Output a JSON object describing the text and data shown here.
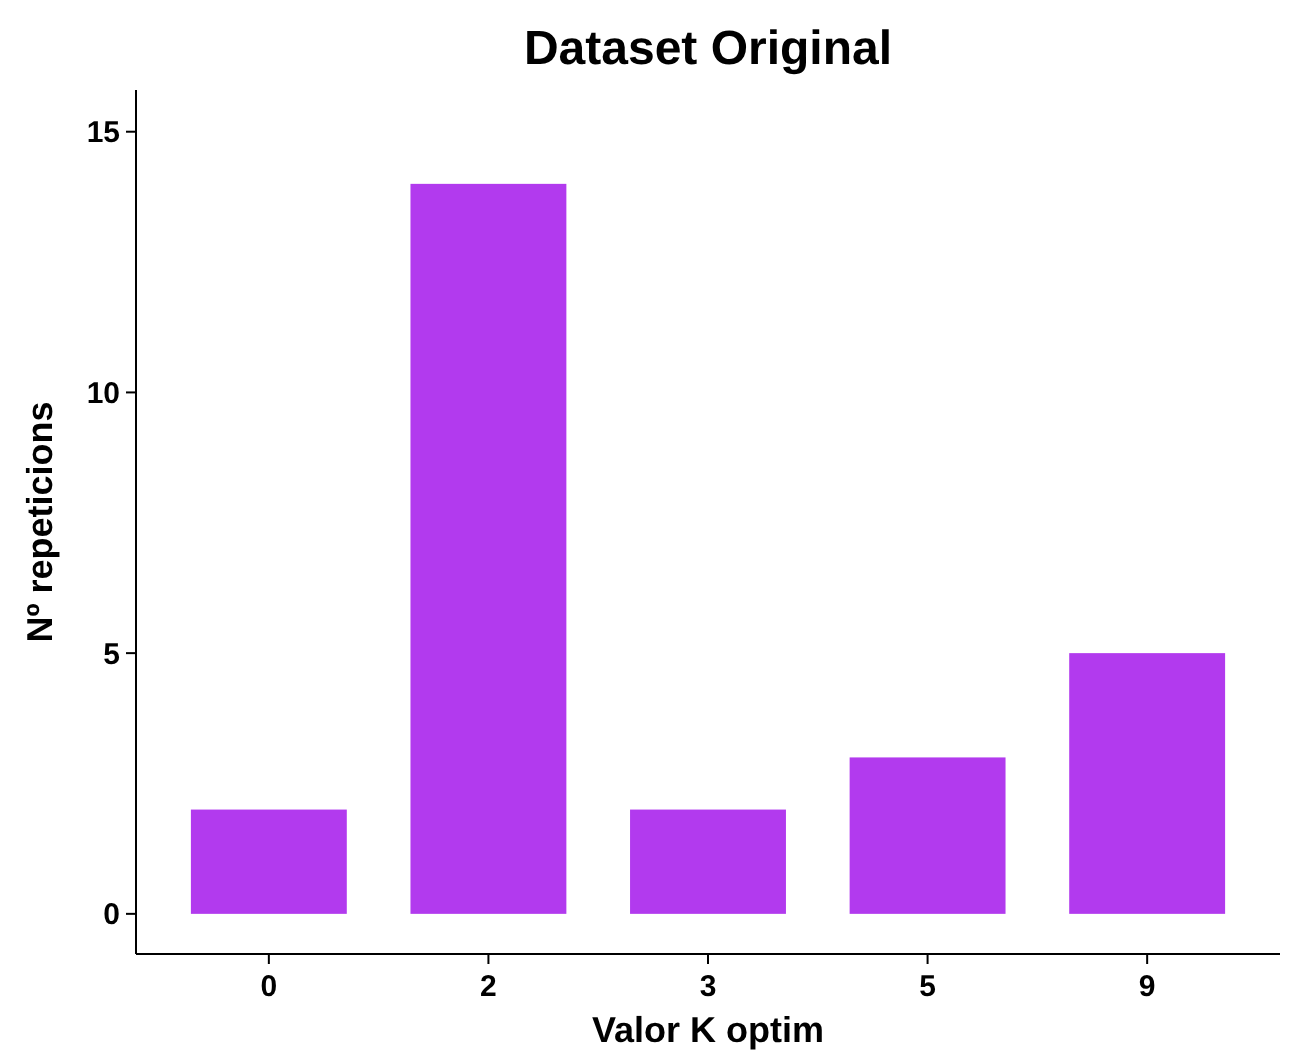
{
  "chart_data": {
    "type": "bar",
    "title": "Dataset Original",
    "xlabel": "Valor K optim",
    "ylabel": "Nº repeticions",
    "categories": [
      "0",
      "2",
      "3",
      "5",
      "9"
    ],
    "values": [
      2,
      14,
      2,
      3,
      5
    ],
    "color": "#b23aee",
    "ylim": [
      -0.77,
      15.8
    ],
    "yticks": [
      0,
      5,
      10,
      15
    ],
    "grid": false
  }
}
